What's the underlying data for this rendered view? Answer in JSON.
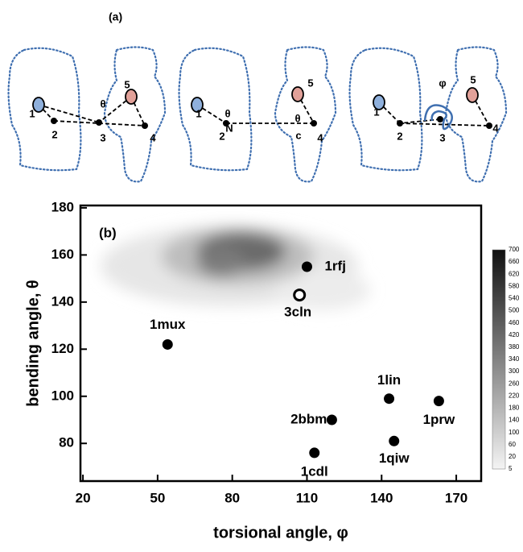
{
  "panel_a": {
    "label": "(a)",
    "diagrams": [
      {
        "labels": [
          "1",
          "2",
          "3",
          "4",
          "5",
          "θ"
        ]
      },
      {
        "labels": [
          "1",
          "θ",
          "N",
          "2",
          "θ",
          "c",
          "4",
          "5"
        ]
      },
      {
        "labels": [
          "1",
          "2",
          "3",
          "4",
          "5",
          "φ"
        ]
      }
    ]
  },
  "chart_data": {
    "type": "scatter",
    "panel_label": "(b)",
    "x_label": "torsional angle, φ",
    "y_label": "bending angle, θ",
    "xlim": [
      19,
      180
    ],
    "ylim": [
      64,
      181
    ],
    "xticks": [
      20,
      50,
      80,
      110,
      140,
      170
    ],
    "yticks": [
      80,
      100,
      120,
      140,
      160,
      180
    ],
    "points": [
      {
        "name": "1rfj",
        "x": 110,
        "y": 155,
        "marker": "filled"
      },
      {
        "name": "3cln",
        "x": 107,
        "y": 143,
        "marker": "open"
      },
      {
        "name": "1mux",
        "x": 54,
        "y": 122,
        "marker": "filled"
      },
      {
        "name": "1lin",
        "x": 143,
        "y": 99,
        "marker": "filled"
      },
      {
        "name": "2bbm",
        "x": 120,
        "y": 90,
        "marker": "filled"
      },
      {
        "name": "1prw",
        "x": 163,
        "y": 98,
        "marker": "filled"
      },
      {
        "name": "1qiw",
        "x": 145,
        "y": 81,
        "marker": "filled"
      },
      {
        "name": "1cdl",
        "x": 113,
        "y": 76,
        "marker": "filled"
      }
    ],
    "colorbar_ticks": [
      5,
      20,
      60,
      100,
      140,
      180,
      220,
      260,
      300,
      340,
      380,
      420,
      460,
      500,
      540,
      580,
      620,
      660,
      700
    ]
  }
}
